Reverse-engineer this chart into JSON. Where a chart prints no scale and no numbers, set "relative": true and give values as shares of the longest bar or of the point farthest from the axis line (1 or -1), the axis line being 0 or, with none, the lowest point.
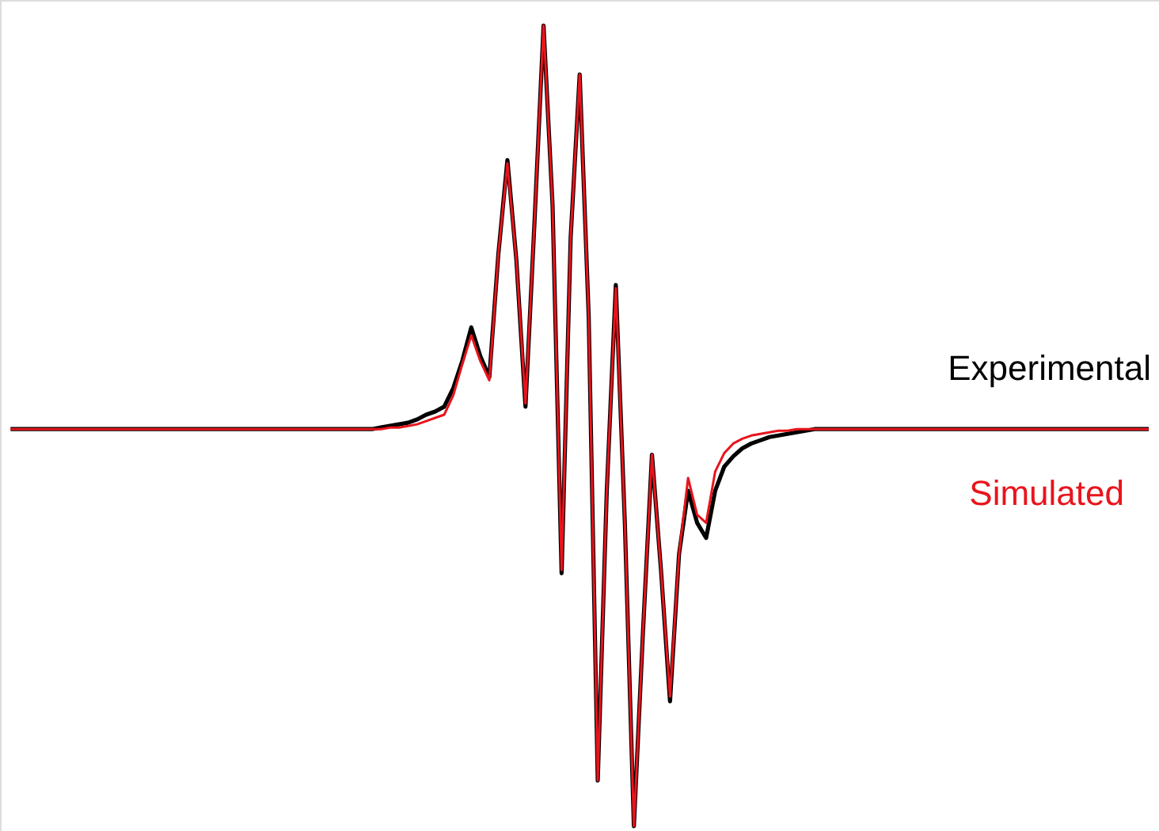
{
  "chart_data": {
    "type": "line",
    "relative": true,
    "legend": false,
    "categories": [
      null,
      null,
      null,
      null,
      null,
      null,
      null,
      null,
      null,
      null,
      null,
      null,
      null,
      null,
      null,
      null,
      null,
      null,
      null,
      null,
      null,
      null,
      null,
      null,
      null,
      null,
      null,
      null,
      null,
      null,
      null,
      null,
      null,
      null,
      null,
      null,
      null,
      null,
      null,
      null,
      null,
      null,
      null,
      null,
      null,
      null,
      null,
      null,
      null,
      null,
      null,
      null,
      null,
      null,
      null,
      null,
      null,
      null,
      null,
      null,
      null,
      null,
      null,
      null,
      null,
      null,
      null,
      null,
      null,
      null,
      null,
      null,
      null,
      null,
      null,
      null,
      null,
      null,
      null,
      null,
      null,
      null,
      null,
      null,
      null,
      null,
      null,
      null,
      null,
      null,
      null,
      null,
      null,
      null,
      null,
      null,
      null,
      null,
      null,
      null,
      null,
      null,
      null,
      null,
      null,
      null,
      null,
      null,
      null,
      null,
      null,
      null,
      null,
      null,
      null,
      null,
      null,
      null,
      null,
      null,
      null,
      null,
      null,
      null,
      null,
      null,
      null
    ],
    "series": [
      {
        "name": "Experimental",
        "color": "#000000",
        "values": [
          0.496,
          0.496,
          0.496,
          0.496,
          0.496,
          0.496,
          0.496,
          0.496,
          0.496,
          0.496,
          0.496,
          0.496,
          0.496,
          0.496,
          0.496,
          0.496,
          0.496,
          0.496,
          0.496,
          0.496,
          0.496,
          0.496,
          0.496,
          0.496,
          0.496,
          0.496,
          0.496,
          0.496,
          0.496,
          0.496,
          0.496,
          0.496,
          0.496,
          0.496,
          0.496,
          0.496,
          0.496,
          0.496,
          0.496,
          0.496,
          0.496,
          0.498,
          0.5,
          0.502,
          0.504,
          0.508,
          0.514,
          0.518,
          0.524,
          0.547,
          0.581,
          0.623,
          0.587,
          0.561,
          0.715,
          0.832,
          0.706,
          0.524,
          0.755,
          1,
          0.775,
          0.316,
          0.735,
          0.939,
          0.636,
          0.057,
          0.419,
          0.676,
          0.379,
          0,
          0.241,
          0.464,
          0.32,
          0.156,
          0.34,
          0.419,
          0.379,
          0.36,
          0.419,
          0.449,
          0.462,
          0.472,
          0.478,
          0.482,
          0.486,
          0.488,
          0.49,
          0.492,
          0.494,
          0.496,
          0.496,
          0.496,
          0.496,
          0.496,
          0.496,
          0.496,
          0.496,
          0.496,
          0.496,
          0.496,
          0.496,
          0.496,
          0.496,
          0.496,
          0.496,
          0.496,
          0.496,
          0.496,
          0.496,
          0.496,
          0.496,
          0.496,
          0.496,
          0.496,
          0.496,
          0.496,
          0.496,
          0.496,
          0.496,
          0.496,
          0.496,
          0.496,
          0.496,
          0.496,
          0.496,
          0.496,
          0.496
        ]
      },
      {
        "name": "Simulated",
        "color": "#e8141c",
        "values": [
          0.496,
          0.496,
          0.496,
          0.496,
          0.496,
          0.496,
          0.496,
          0.496,
          0.496,
          0.496,
          0.496,
          0.496,
          0.496,
          0.496,
          0.496,
          0.496,
          0.496,
          0.496,
          0.496,
          0.496,
          0.496,
          0.496,
          0.496,
          0.496,
          0.496,
          0.496,
          0.496,
          0.496,
          0.496,
          0.496,
          0.496,
          0.496,
          0.496,
          0.496,
          0.496,
          0.496,
          0.496,
          0.496,
          0.496,
          0.496,
          0.496,
          0.496,
          0.498,
          0.498,
          0.5,
          0.502,
          0.506,
          0.51,
          0.514,
          0.538,
          0.577,
          0.613,
          0.581,
          0.557,
          0.715,
          0.828,
          0.706,
          0.528,
          0.755,
          1,
          0.775,
          0.32,
          0.735,
          0.939,
          0.636,
          0.057,
          0.419,
          0.672,
          0.379,
          0,
          0.241,
          0.464,
          0.32,
          0.162,
          0.34,
          0.435,
          0.389,
          0.379,
          0.443,
          0.466,
          0.478,
          0.484,
          0.488,
          0.49,
          0.492,
          0.494,
          0.494,
          0.496,
          0.496,
          0.496,
          0.496,
          0.496,
          0.496,
          0.496,
          0.496,
          0.496,
          0.496,
          0.496,
          0.496,
          0.496,
          0.496,
          0.496,
          0.496,
          0.496,
          0.496,
          0.496,
          0.496,
          0.496,
          0.496,
          0.496,
          0.496,
          0.496,
          0.496,
          0.496,
          0.496,
          0.496,
          0.496,
          0.496,
          0.496,
          0.496,
          0.496,
          0.496,
          0.496,
          0.496,
          0.496,
          0.496,
          0.496
        ]
      }
    ]
  }
}
